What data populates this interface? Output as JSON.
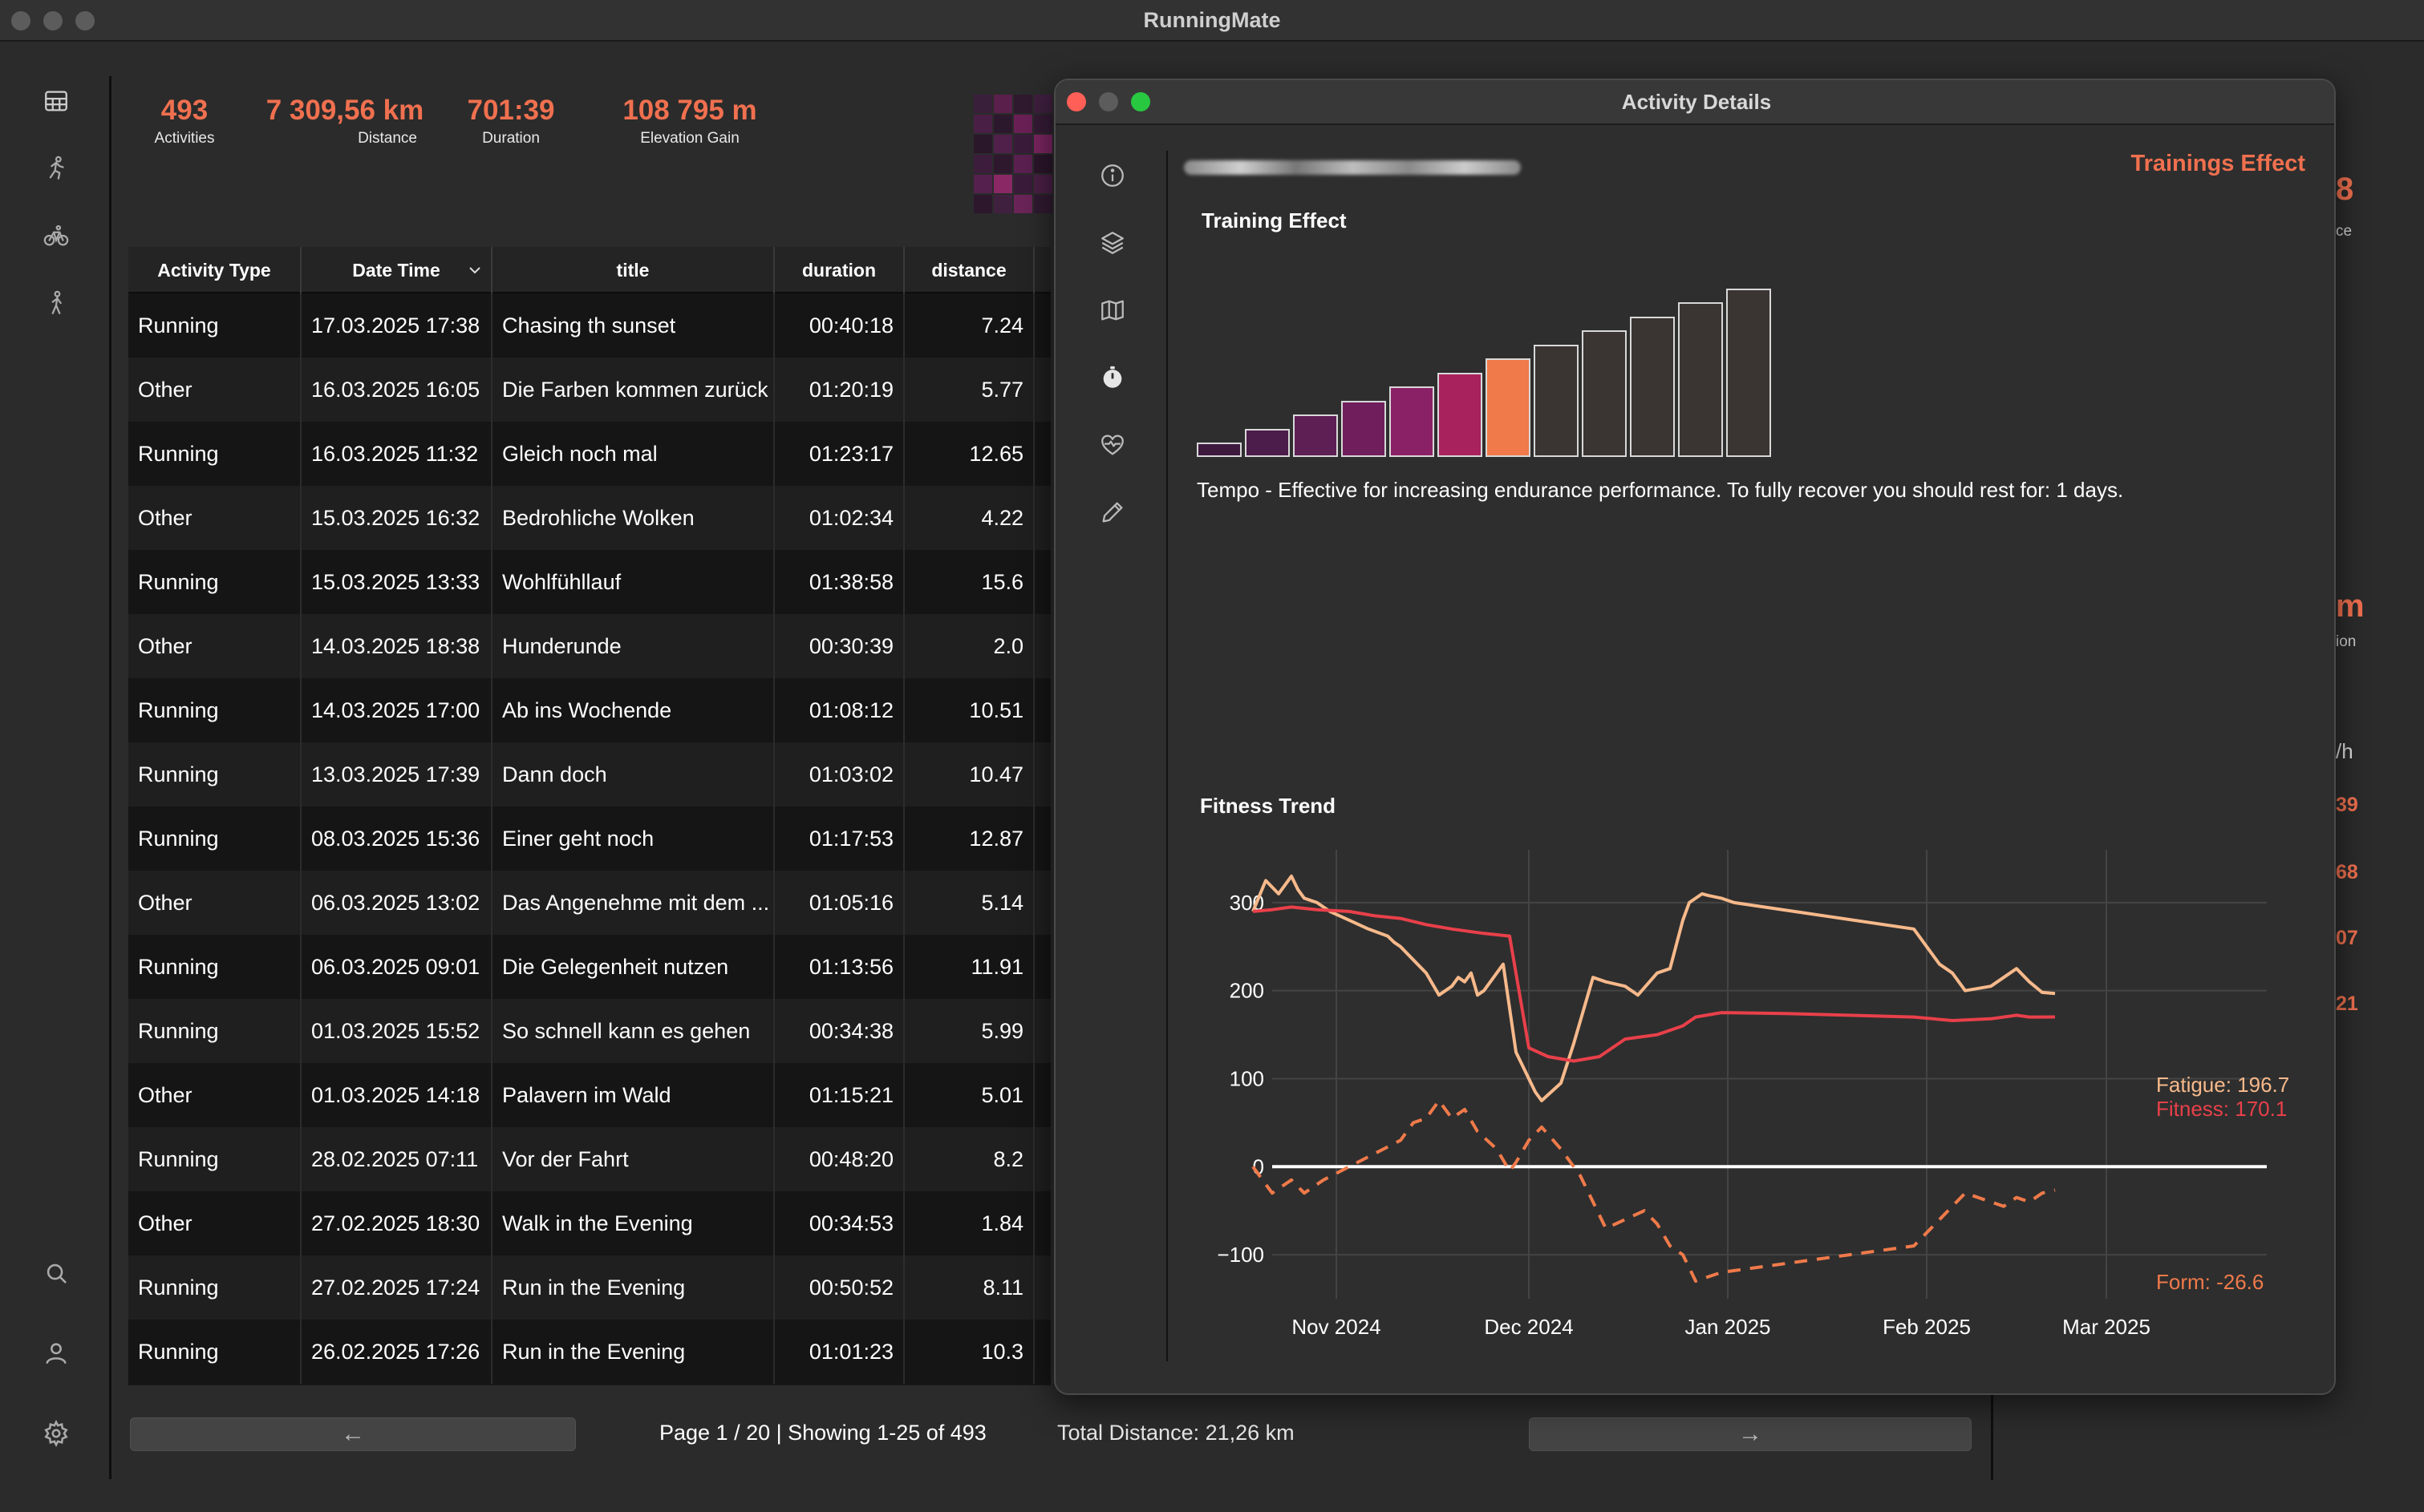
{
  "app": {
    "title": "RunningMate"
  },
  "colors": {
    "accent": "#f0704f",
    "fatigue": "#f7b98b",
    "fitness": "#e8404a",
    "form": "#f07a4a"
  },
  "sidebar": {
    "icons": [
      "grid-icon",
      "running-icon",
      "cycling-icon",
      "walking-icon",
      "search-icon",
      "person-icon",
      "gear-icon"
    ]
  },
  "stats": [
    {
      "value": "493",
      "label": "Activities"
    },
    {
      "value": "7 309,56 km",
      "label": "Distance"
    },
    {
      "value": "701:39",
      "label": "Duration"
    },
    {
      "value": "108 795 m",
      "label": "Elevation Gain"
    }
  ],
  "table": {
    "columns": [
      "Activity Type",
      "Date Time",
      "title",
      "duration",
      "distance"
    ],
    "rows": [
      [
        "Running",
        "17.03.2025 17:38",
        "Chasing th sunset",
        "00:40:18",
        "7.24"
      ],
      [
        "Other",
        "16.03.2025 16:05",
        "Die Farben kommen zurück",
        "01:20:19",
        "5.77"
      ],
      [
        "Running",
        "16.03.2025 11:32",
        "Gleich noch mal",
        "01:23:17",
        "12.65"
      ],
      [
        "Other",
        "15.03.2025 16:32",
        "Bedrohliche Wolken",
        "01:02:34",
        "4.22"
      ],
      [
        "Running",
        "15.03.2025 13:33",
        "Wohlfühllauf",
        "01:38:58",
        "15.6"
      ],
      [
        "Other",
        "14.03.2025 18:38",
        "Hunderunde",
        "00:30:39",
        "2.0"
      ],
      [
        "Running",
        "14.03.2025 17:00",
        "Ab ins Wochende",
        "01:08:12",
        "10.51"
      ],
      [
        "Running",
        "13.03.2025 17:39",
        "Dann doch",
        "01:03:02",
        "10.47"
      ],
      [
        "Running",
        "08.03.2025 15:36",
        "Einer geht noch",
        "01:17:53",
        "12.87"
      ],
      [
        "Other",
        "06.03.2025 13:02",
        "Das Angenehme mit dem ...",
        "01:05:16",
        "5.14"
      ],
      [
        "Running",
        "06.03.2025 09:01",
        "Die Gelegenheit nutzen",
        "01:13:56",
        "11.91"
      ],
      [
        "Running",
        "01.03.2025 15:52",
        "So schnell kann es gehen",
        "00:34:38",
        "5.99"
      ],
      [
        "Other",
        "01.03.2025 14:18",
        "Palavern im Wald",
        "01:15:21",
        "5.01"
      ],
      [
        "Running",
        "28.02.2025 07:11",
        "Vor der Fahrt",
        "00:48:20",
        "8.2"
      ],
      [
        "Other",
        "27.02.2025 18:30",
        "Walk in the Evening",
        "00:34:53",
        "1.84"
      ],
      [
        "Running",
        "27.02.2025 17:24",
        "Run in the Evening",
        "00:50:52",
        "8.11"
      ],
      [
        "Running",
        "26.02.2025 17:26",
        "Run in the Evening",
        "01:01:23",
        "10.3"
      ]
    ]
  },
  "pagination": {
    "prev": "←",
    "next": "→",
    "info": "Page 1 / 20 | Showing 1-25 of 493",
    "total": "Total Distance: 21,26 km"
  },
  "peek": {
    "v1": "8",
    "l1": "ce",
    "v2": "m",
    "l2": "ion",
    "v3": "/h",
    "v4": "39",
    "v5": "68",
    "v6": "07",
    "v7": "21"
  },
  "details": {
    "title": "Activity Details",
    "header": "Trainings Effect",
    "icons": [
      "info-icon",
      "layers-icon",
      "map-icon",
      "stopwatch-icon",
      "heart-icon",
      "pencil-icon"
    ],
    "training_effect_title": "Training Effect",
    "training_effect_desc": "Tempo - Effective for increasing endurance performance. To fully recover you should rest for: 1 days.",
    "training_effect_level": 7,
    "training_effect_total": 12,
    "fitness_trend_title": "Fitness Trend"
  },
  "chart_data": {
    "type": "line",
    "title": "Fitness Trend",
    "x_ticks": [
      "Nov 2024",
      "Dec 2024",
      "Jan 2025",
      "Feb 2025",
      "Mar 2025"
    ],
    "x_range": [
      0,
      155
    ],
    "x_tick_positions": [
      10,
      40,
      71,
      102,
      130
    ],
    "y_ticks": [
      "300",
      "200",
      "100",
      "0",
      "−100"
    ],
    "y_tick_values": [
      300,
      200,
      100,
      0,
      -100
    ],
    "ylim": [
      -150,
      360
    ],
    "annotations": [
      "Fatigue: 196.7",
      "Fitness: 170.1",
      "Form: -26.6"
    ],
    "series": [
      {
        "name": "Fatigue",
        "style": "solid",
        "x": [
          -3,
          -1,
          1,
          3,
          4,
          5,
          7,
          9,
          12,
          15,
          18,
          19,
          20,
          22,
          24,
          26,
          28,
          29,
          30,
          31,
          32,
          33,
          34,
          36,
          38,
          39,
          40,
          41,
          42,
          45,
          47,
          50,
          52,
          55,
          57,
          60,
          62,
          64,
          65,
          67,
          68,
          70,
          72,
          100,
          104,
          106,
          108,
          112,
          116,
          118,
          120,
          122
        ],
        "values": [
          290,
          325,
          310,
          330,
          315,
          305,
          300,
          290,
          280,
          270,
          262,
          255,
          250,
          235,
          220,
          195,
          205,
          215,
          210,
          220,
          195,
          200,
          210,
          230,
          130,
          115,
          100,
          85,
          75,
          95,
          140,
          215,
          210,
          205,
          195,
          220,
          225,
          280,
          300,
          310,
          308,
          305,
          300,
          270,
          230,
          220,
          200,
          205,
          225,
          210,
          198,
          196.7
        ],
        "color": "#f7b98b"
      },
      {
        "name": "Fitness",
        "style": "solid",
        "x": [
          -3,
          0,
          3,
          7,
          12,
          16,
          20,
          24,
          28,
          33,
          37,
          40,
          43,
          47,
          51,
          55,
          60,
          64,
          66,
          70,
          80,
          90,
          100,
          106,
          112,
          116,
          118,
          122
        ],
        "values": [
          290,
          292,
          295,
          292,
          290,
          285,
          282,
          275,
          270,
          265,
          262,
          135,
          125,
          120,
          125,
          145,
          150,
          160,
          170,
          175,
          174,
          172,
          170,
          166,
          168,
          172,
          170,
          170.1
        ],
        "color": "#e8404a"
      },
      {
        "name": "Form",
        "style": "dashed",
        "x": [
          -3,
          0,
          3,
          5,
          8,
          12,
          16,
          20,
          22,
          24,
          26,
          28,
          30,
          32,
          35,
          37,
          38,
          40,
          42,
          45,
          48,
          52,
          55,
          58,
          60,
          62,
          64,
          66,
          68,
          70,
          80,
          90,
          100,
          104,
          108,
          112,
          114,
          116,
          118,
          120,
          122
        ],
        "values": [
          0,
          -30,
          -15,
          -30,
          -15,
          0,
          15,
          30,
          50,
          55,
          75,
          55,
          65,
          40,
          20,
          -5,
          5,
          30,
          45,
          20,
          -10,
          -70,
          -60,
          -50,
          -65,
          -90,
          -100,
          -130,
          -125,
          -120,
          -110,
          -100,
          -90,
          -60,
          -30,
          -40,
          -45,
          -35,
          -40,
          -30,
          -26.6
        ],
        "color": "#f07a4a"
      }
    ]
  }
}
